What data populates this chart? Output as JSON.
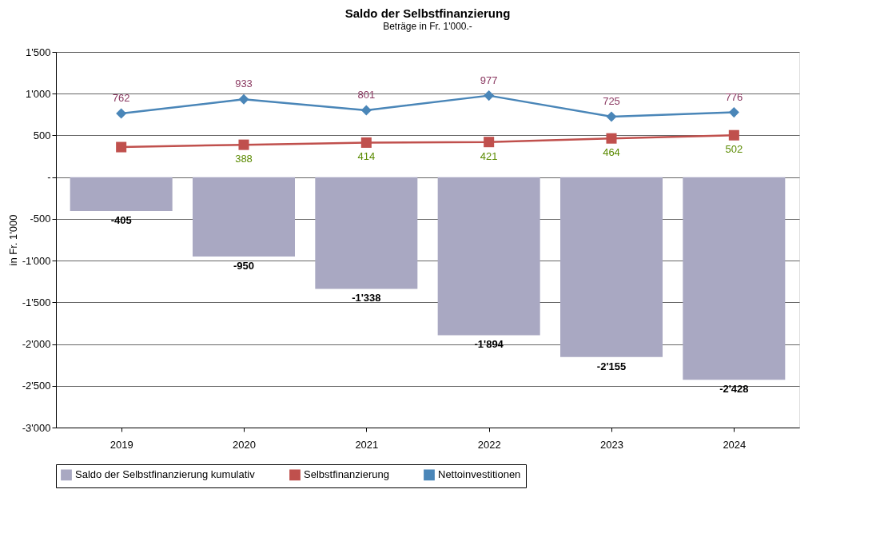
{
  "chart_data": {
    "type": "bar",
    "title": "Saldo der Selbstfinanzierung",
    "subtitle": "Beträge in Fr. 1'000.-",
    "ylabel": "in Fr. 1'000",
    "categories": [
      "2019",
      "2020",
      "2021",
      "2022",
      "2023",
      "2024"
    ],
    "series": [
      {
        "name": "Saldo der Selbstfinanzierung kumulativ",
        "color": "#a9a8c2",
        "values": [
          -405,
          -950,
          -1338,
          -1894,
          -2155,
          -2428
        ],
        "value_labels": [
          "-405",
          "-950",
          "-1'338",
          "-1'894",
          "-2'155",
          "-2'428"
        ]
      },
      {
        "name": "Selbstfinanzierung",
        "type": "line",
        "marker": "square",
        "color": "#c0504d",
        "values": [
          360,
          388,
          414,
          421,
          464,
          502
        ],
        "value_labels": [
          null,
          "388",
          "414",
          "421",
          "464",
          "502"
        ]
      },
      {
        "name": "Nettoinvestitionen",
        "type": "line",
        "marker": "diamond",
        "color": "#4a86b8",
        "values": [
          762,
          933,
          801,
          977,
          725,
          776
        ],
        "value_labels": [
          "762",
          "933",
          "801",
          "977",
          "725",
          "776"
        ]
      }
    ],
    "ylim": [
      -3000,
      1500
    ],
    "yticks": [
      {
        "value": 1500,
        "label": "1'500"
      },
      {
        "value": 1000,
        "label": "1'000"
      },
      500,
      {
        "value": 0,
        "label": "-"
      },
      -500,
      {
        "value": -1000,
        "label": "-1'000"
      },
      {
        "value": -1500,
        "label": "-1'500"
      },
      {
        "value": -2000,
        "label": "-2'000"
      },
      {
        "value": -2500,
        "label": "-2'500"
      },
      {
        "value": -3000,
        "label": "-3'000"
      }
    ],
    "grid": "y",
    "legend": "bottom"
  }
}
